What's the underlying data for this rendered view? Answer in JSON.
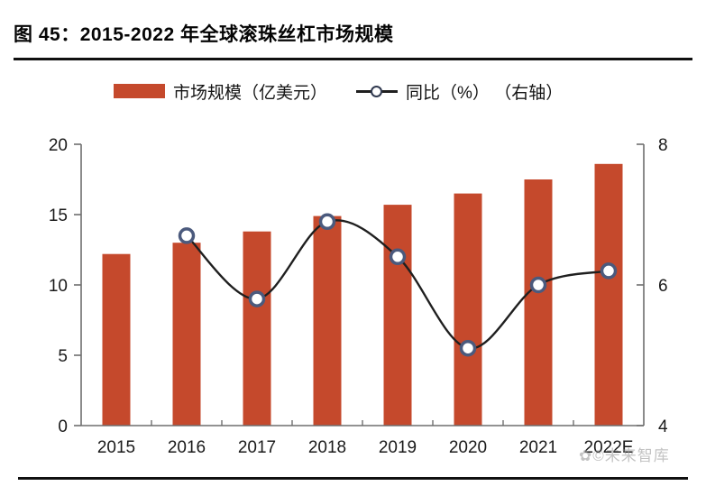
{
  "page": {
    "title": "图 45：2015-2022 年全球滚珠丝杠市场规模"
  },
  "legend": {
    "bar_label": "市场规模（亿美元）",
    "line_label": "同比（%） （右轴）"
  },
  "watermark": {
    "logo_glyph": "✿",
    "text": "©未来智库"
  },
  "colors": {
    "bar": "#c5492c",
    "line": "#1f1f1f",
    "marker_ring": "#4b5a7d",
    "marker_fill": "#ffffff",
    "axis": "#6e6e6e",
    "tick_text": "#1a1a1a"
  },
  "chart_data": {
    "type": "bar",
    "subtype": "bar+line combo",
    "title": "2015-2022 年全球滚珠丝杠市场规模",
    "categories": [
      "2015",
      "2016",
      "2017",
      "2018",
      "2019",
      "2020",
      "2021",
      "2022E"
    ],
    "series": [
      {
        "name": "市场规模（亿美元）",
        "type": "bar",
        "axis": "left",
        "values": [
          12.2,
          13.0,
          13.8,
          14.9,
          15.7,
          16.5,
          17.5,
          18.6
        ]
      },
      {
        "name": "同比（%）",
        "type": "line",
        "axis": "right",
        "values": [
          null,
          6.7,
          5.8,
          6.9,
          6.4,
          5.1,
          6.0,
          6.2
        ]
      }
    ],
    "left_axis": {
      "min": 0,
      "max": 20,
      "ticks": [
        0,
        5,
        10,
        15,
        20
      ]
    },
    "right_axis": {
      "min": 4,
      "max": 8,
      "ticks": [
        4,
        6,
        8
      ]
    },
    "grid": false,
    "legend_position": "top"
  }
}
